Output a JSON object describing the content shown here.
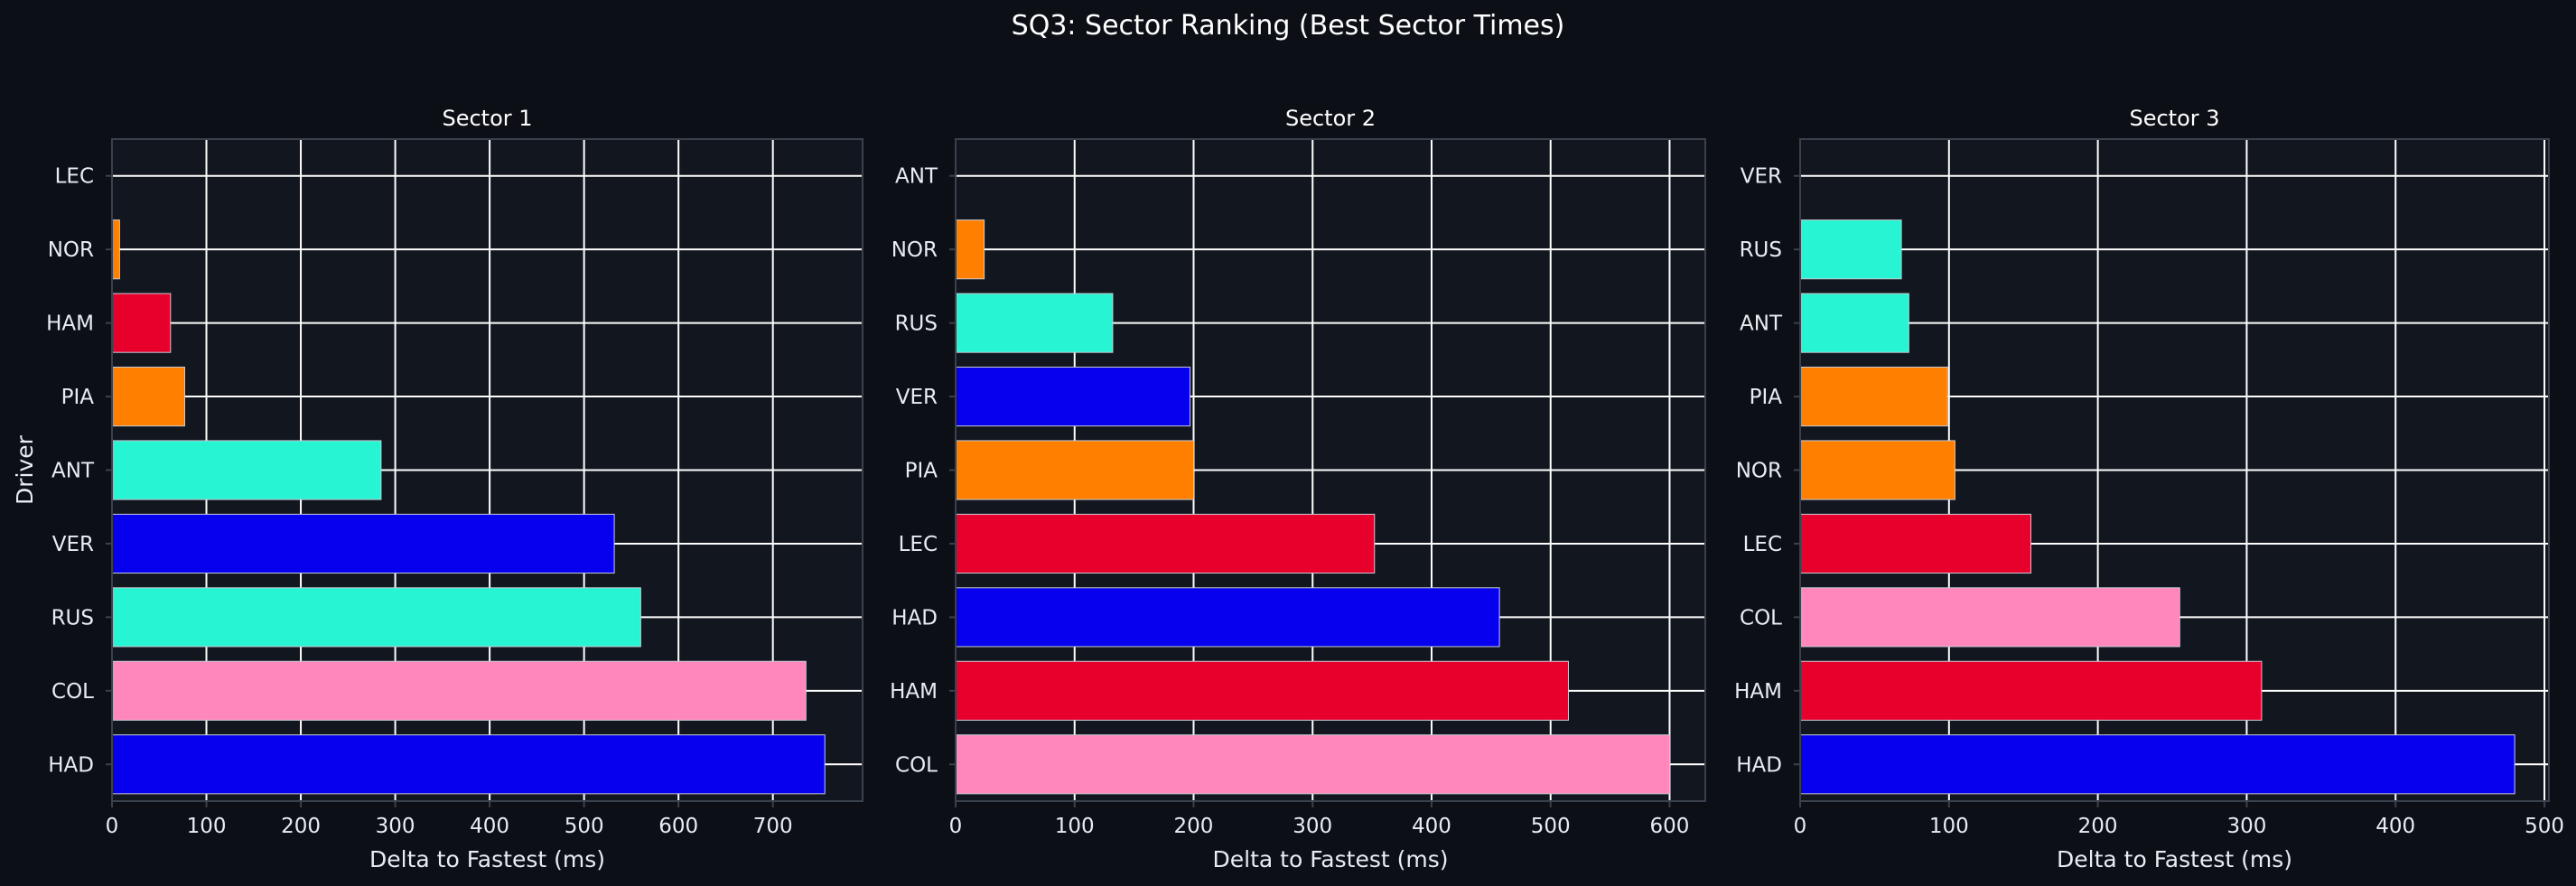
{
  "figure": {
    "title": "SQ3: Sector Ranking (Best Sector Times)",
    "background": "#0c0f16",
    "axes_background": "#12161f",
    "grid_color": "#ffffff",
    "spine_color": "#3a414d"
  },
  "team_colors": {
    "ferrari": "#e8002d",
    "mclaren": "#ff8000",
    "mercedes": "#27f4d2",
    "red_bull_racing": "#0600ef",
    "alpine": "#ff87bc"
  },
  "chart_data": [
    {
      "type": "bar",
      "orientation": "horizontal",
      "title": "Sector 1",
      "xlabel": "Delta to Fastest (ms)",
      "ylabel": "Driver",
      "xlim": [
        0,
        795
      ],
      "xticks": [
        0,
        100,
        200,
        300,
        400,
        500,
        600,
        700
      ],
      "grid": true,
      "categories": [
        "LEC",
        "NOR",
        "HAM",
        "PIA",
        "ANT",
        "VER",
        "RUS",
        "COL",
        "HAD"
      ],
      "values": [
        0,
        8,
        62,
        77,
        285,
        532,
        560,
        735,
        755
      ],
      "colors": [
        "#e8002d",
        "#ff8000",
        "#e8002d",
        "#ff8000",
        "#27f4d2",
        "#0600ef",
        "#27f4d2",
        "#ff87bc",
        "#0600ef"
      ]
    },
    {
      "type": "bar",
      "orientation": "horizontal",
      "title": "Sector 2",
      "xlabel": "Delta to Fastest (ms)",
      "ylabel": "",
      "xlim": [
        0,
        630
      ],
      "xticks": [
        0,
        100,
        200,
        300,
        400,
        500,
        600
      ],
      "grid": true,
      "categories": [
        "ANT",
        "NOR",
        "RUS",
        "VER",
        "PIA",
        "LEC",
        "HAD",
        "HAM",
        "COL"
      ],
      "values": [
        0,
        24,
        132,
        197,
        200,
        352,
        457,
        515,
        600
      ],
      "colors": [
        "#27f4d2",
        "#ff8000",
        "#27f4d2",
        "#0600ef",
        "#ff8000",
        "#e8002d",
        "#0600ef",
        "#e8002d",
        "#ff87bc"
      ]
    },
    {
      "type": "bar",
      "orientation": "horizontal",
      "title": "Sector 3",
      "xlabel": "Delta to Fastest (ms)",
      "ylabel": "",
      "xlim": [
        0,
        503
      ],
      "xticks": [
        0,
        100,
        200,
        300,
        400,
        500
      ],
      "grid": true,
      "categories": [
        "VER",
        "RUS",
        "ANT",
        "PIA",
        "NOR",
        "LEC",
        "COL",
        "HAM",
        "HAD"
      ],
      "values": [
        0,
        68,
        73,
        99,
        104,
        155,
        255,
        310,
        480
      ],
      "colors": [
        "#0600ef",
        "#27f4d2",
        "#27f4d2",
        "#ff8000",
        "#ff8000",
        "#e8002d",
        "#ff87bc",
        "#e8002d",
        "#0600ef"
      ]
    }
  ]
}
